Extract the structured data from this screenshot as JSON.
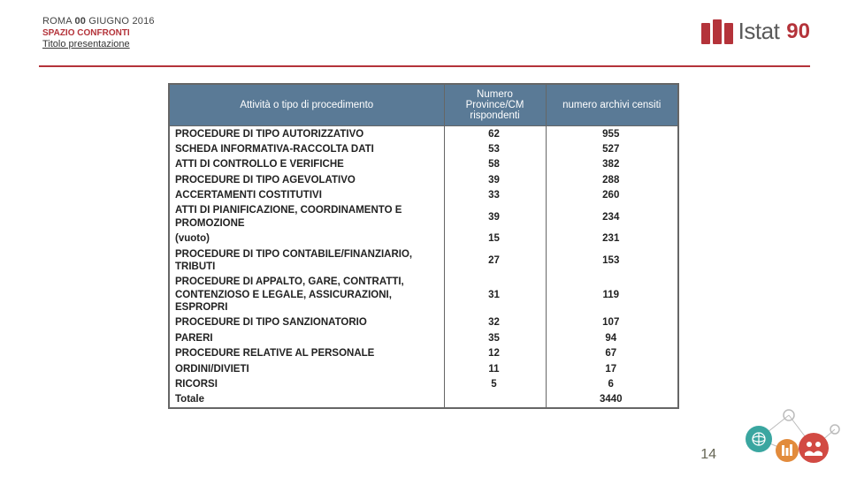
{
  "header": {
    "date_prefix": "ROMA",
    "date_bold": "00",
    "date_suffix": "GIUGNO 2016",
    "conf": "SPAZIO CONFRONTI",
    "title": "Titolo presentazione"
  },
  "logo": {
    "text": "Istat",
    "anniversary": "90"
  },
  "table": {
    "headers": [
      "Attività o tipo di procedimento",
      "Numero Province/CM rispondenti",
      "numero archivi censiti"
    ],
    "rows": [
      {
        "label": "PROCEDURE DI TIPO AUTORIZZATIVO",
        "v1": "62",
        "v2": "955"
      },
      {
        "label": "SCHEDA INFORMATIVA-RACCOLTA DATI",
        "v1": "53",
        "v2": "527"
      },
      {
        "label": "ATTI DI CONTROLLO E VERIFICHE",
        "v1": "58",
        "v2": "382"
      },
      {
        "label": "PROCEDURE DI TIPO AGEVOLATIVO",
        "v1": "39",
        "v2": "288"
      },
      {
        "label": "ACCERTAMENTI COSTITUTIVI",
        "v1": "33",
        "v2": "260"
      },
      {
        "label": "ATTI DI PIANIFICAZIONE, COORDINAMENTO E PROMOZIONE",
        "v1": "39",
        "v2": "234"
      },
      {
        "label": "(vuoto)",
        "v1": "15",
        "v2": "231"
      },
      {
        "label": "PROCEDURE DI TIPO CONTABILE/FINANZIARIO, TRIBUTI",
        "v1": "27",
        "v2": "153"
      },
      {
        "label": "PROCEDURE DI APPALTO, GARE, CONTRATTI, CONTENZIOSO E LEGALE, ASSICURAZIONI, ESPROPRI",
        "v1": "31",
        "v2": "119"
      },
      {
        "label": "PROCEDURE DI TIPO SANZIONATORIO",
        "v1": "32",
        "v2": "107"
      },
      {
        "label": "PARERI",
        "v1": "35",
        "v2": "94"
      },
      {
        "label": "PROCEDURE RELATIVE AL PERSONALE",
        "v1": "12",
        "v2": "67"
      },
      {
        "label": "ORDINI/DIVIETI",
        "v1": "11",
        "v2": "17"
      },
      {
        "label": "RICORSI",
        "v1": "5",
        "v2": "6"
      },
      {
        "label": "Totale",
        "v1": "",
        "v2": "3440"
      }
    ]
  },
  "page_number": "14",
  "colors": {
    "accent": "#b4333a",
    "header_bg": "#5a7a96",
    "teal": "#3aa6a0",
    "orange": "#e28b3c",
    "red": "#d24a43"
  }
}
